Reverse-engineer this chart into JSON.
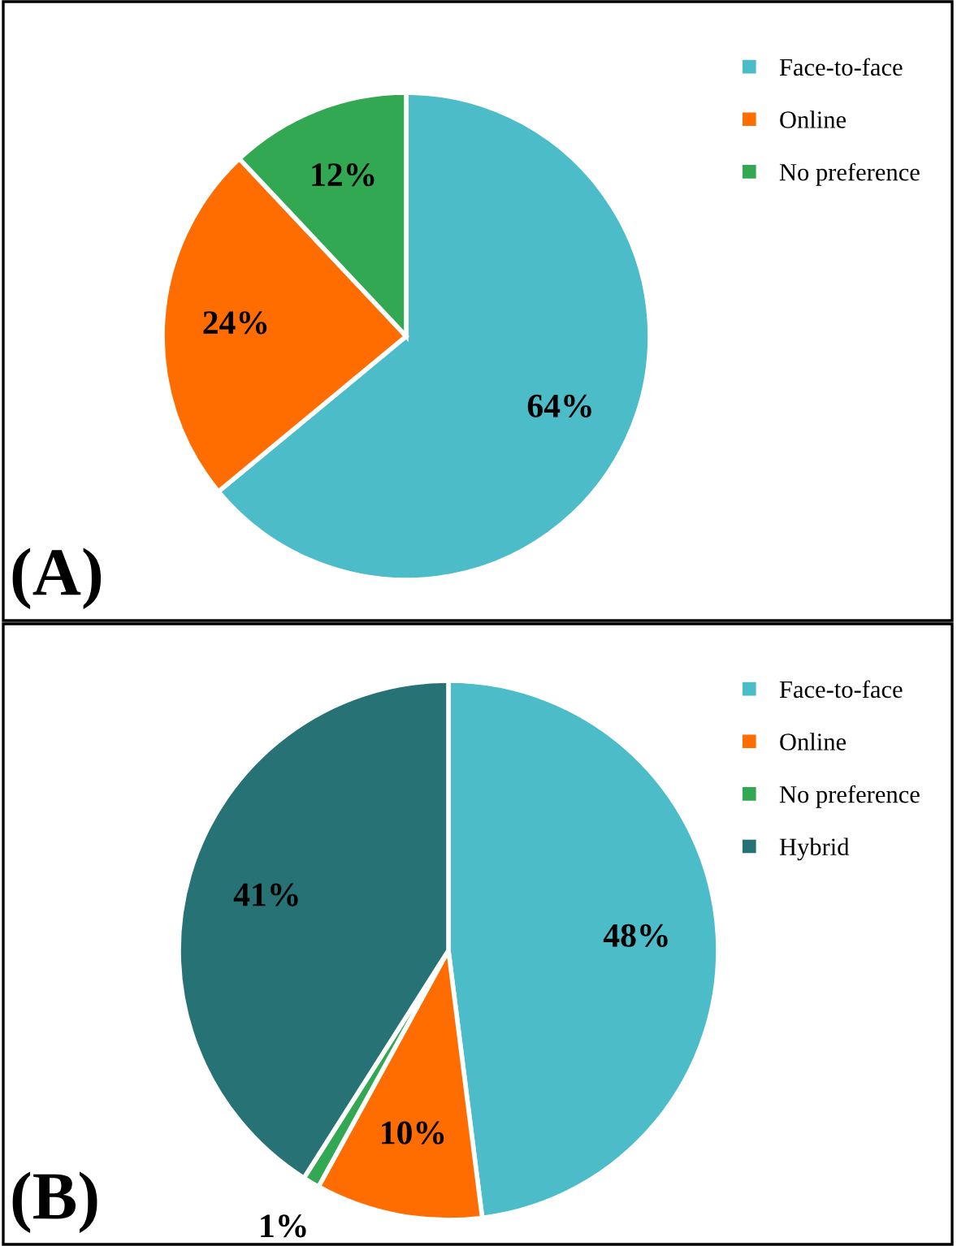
{
  "chart_data": [
    {
      "type": "pie",
      "categories": [
        "Face-to-face",
        "Online",
        "No preference"
      ],
      "values": [
        64,
        24,
        12
      ],
      "value_labels": [
        "64%",
        "24%",
        "12%"
      ],
      "colors": [
        "#4bbcc8",
        "#ff6d00",
        "#33a853"
      ],
      "legend": "top right",
      "annotations": [
        "(A)"
      ]
    },
    {
      "type": "pie",
      "categories": [
        "Face-to-face",
        "Online",
        "No preference",
        "Hybrid"
      ],
      "values": [
        48,
        10,
        1,
        41
      ],
      "value_labels": [
        "48%",
        "10%",
        "1%",
        "41%"
      ],
      "colors": [
        "#4bbcc8",
        "#ff6d00",
        "#33a853",
        "#267275"
      ],
      "legend": "top right",
      "annotations": [
        "(B)"
      ]
    }
  ]
}
